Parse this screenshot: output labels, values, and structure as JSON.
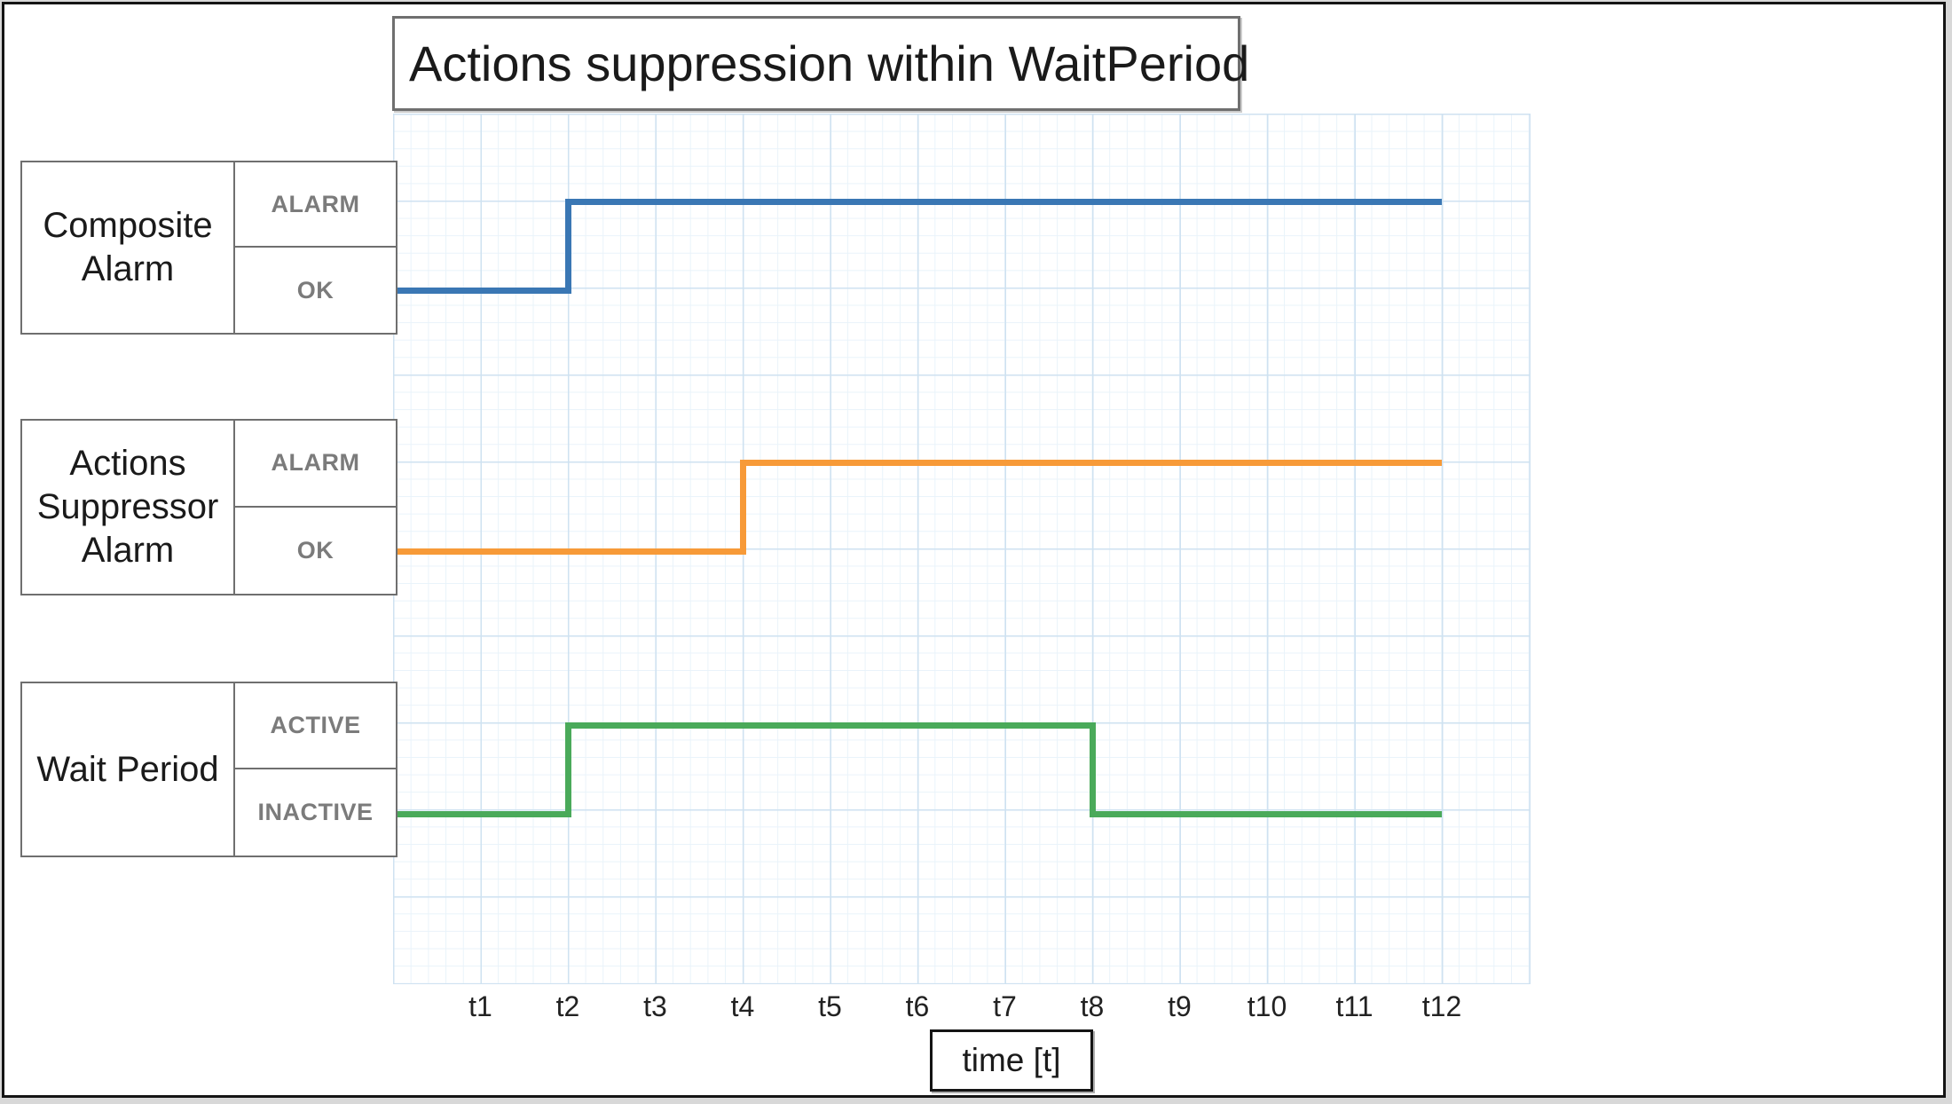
{
  "title": "Actions suppression within WaitPeriod",
  "x_axis": {
    "ticks": [
      "t1",
      "t2",
      "t3",
      "t4",
      "t5",
      "t6",
      "t7",
      "t8",
      "t9",
      "t10",
      "t11",
      "t12"
    ],
    "label": "time [t]"
  },
  "series": [
    {
      "name": "Composite Alarm",
      "high_label": "ALARM",
      "low_label": "OK",
      "color": "#3a77b4",
      "transitions": [
        {
          "t": 0,
          "state": "OK"
        },
        {
          "t": 2,
          "state": "ALARM"
        }
      ],
      "end_t": 12
    },
    {
      "name": "Actions Suppressor Alarm",
      "high_label": "ALARM",
      "low_label": "OK",
      "color": "#f79a38",
      "transitions": [
        {
          "t": 0,
          "state": "OK"
        },
        {
          "t": 4,
          "state": "ALARM"
        }
      ],
      "end_t": 12
    },
    {
      "name": "Wait Period",
      "high_label": "ACTIVE",
      "low_label": "INACTIVE",
      "color": "#4aaa5a",
      "transitions": [
        {
          "t": 0,
          "state": "INACTIVE"
        },
        {
          "t": 2,
          "state": "ACTIVE"
        },
        {
          "t": 8,
          "state": "INACTIVE"
        }
      ],
      "end_t": 12
    }
  ],
  "colors": {
    "grid_major": "#cfe2f1",
    "grid_minor": "#e9f3fa",
    "box_border": "#6f6f6f",
    "frame_border": "#141414",
    "state_text": "#7b7b7b",
    "text": "#1a1a1a"
  }
}
